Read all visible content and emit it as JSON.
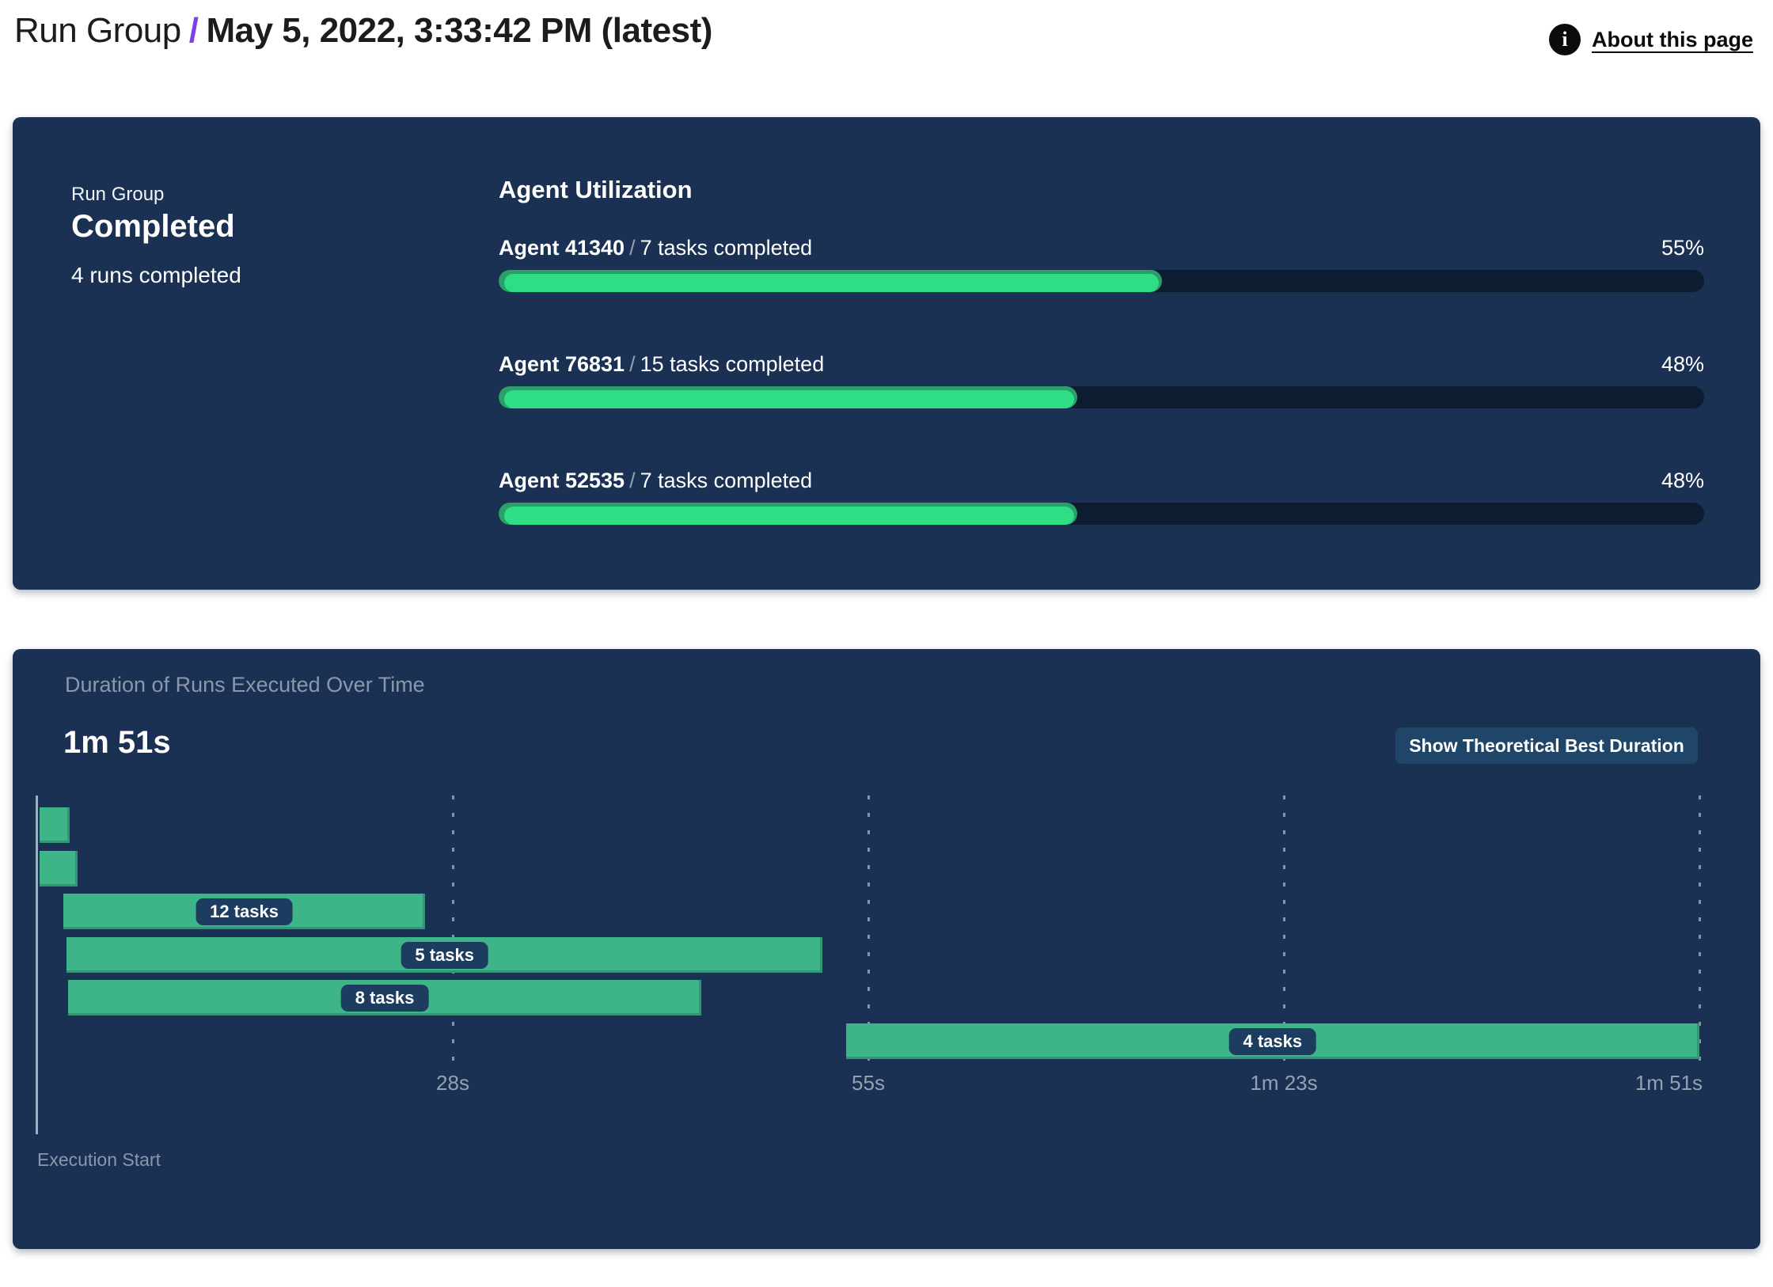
{
  "header": {
    "breadcrumb_root": "Run Group",
    "breadcrumb_separator": "/",
    "title": "May 5, 2022, 3:33:42 PM (latest)",
    "about_link": "About this page",
    "info_icon_glyph": "i"
  },
  "summary_card": {
    "label": "Run Group",
    "status": "Completed",
    "runs_completed": "4 runs completed",
    "agent_utilization": {
      "title": "Agent Utilization",
      "agents": [
        {
          "name": "Agent 41340",
          "separator": "/",
          "tasks": "7 tasks completed",
          "percent": "55%",
          "percent_value": 55
        },
        {
          "name": "Agent 76831",
          "separator": "/",
          "tasks": "15 tasks completed",
          "percent": "48%",
          "percent_value": 48
        },
        {
          "name": "Agent 52535",
          "separator": "/",
          "tasks": "7 tasks completed",
          "percent": "48%",
          "percent_value": 48
        }
      ]
    }
  },
  "duration_card": {
    "title": "Duration of Runs Executed Over Time",
    "total_duration": "1m 51s",
    "button_label": "Show Theoretical Best Duration",
    "axis_label": "Execution Start"
  },
  "chart_data": {
    "type": "gantt",
    "title": "Duration of Runs Executed Over Time",
    "total_duration_label": "1m 51s",
    "total_duration_seconds": 111,
    "x_axis_label": "Execution Start",
    "x_ticks": [
      {
        "seconds": 27.75,
        "label": "28s"
      },
      {
        "seconds": 55.5,
        "label": "55s"
      },
      {
        "seconds": 83.25,
        "label": "1m 23s"
      },
      {
        "seconds": 111,
        "label": "1m 51s"
      }
    ],
    "runs": [
      {
        "start_s": 0.15,
        "end_s": 2.15,
        "label": "",
        "tasks": null
      },
      {
        "start_s": 0.15,
        "end_s": 2.7,
        "label": "",
        "tasks": null
      },
      {
        "start_s": 1.75,
        "end_s": 25.9,
        "label": "12 tasks",
        "tasks": 12
      },
      {
        "start_s": 1.96,
        "end_s": 52.45,
        "label": "5 tasks",
        "tasks": 5
      },
      {
        "start_s": 2.06,
        "end_s": 44.35,
        "label": "8 tasks",
        "tasks": 8
      },
      {
        "start_s": 54.0,
        "end_s": 111,
        "label": "4 tasks",
        "tasks": 4
      }
    ],
    "colors": {
      "bar": "#3eb489",
      "grid": "#dde7f1",
      "axis": "#9db0c4",
      "progress_fill": "#2edd84",
      "progress_track": "#0d1c31",
      "card_background": "#1a3153",
      "accent_slash": "#7a43e8"
    },
    "legend": null,
    "grid": true
  }
}
